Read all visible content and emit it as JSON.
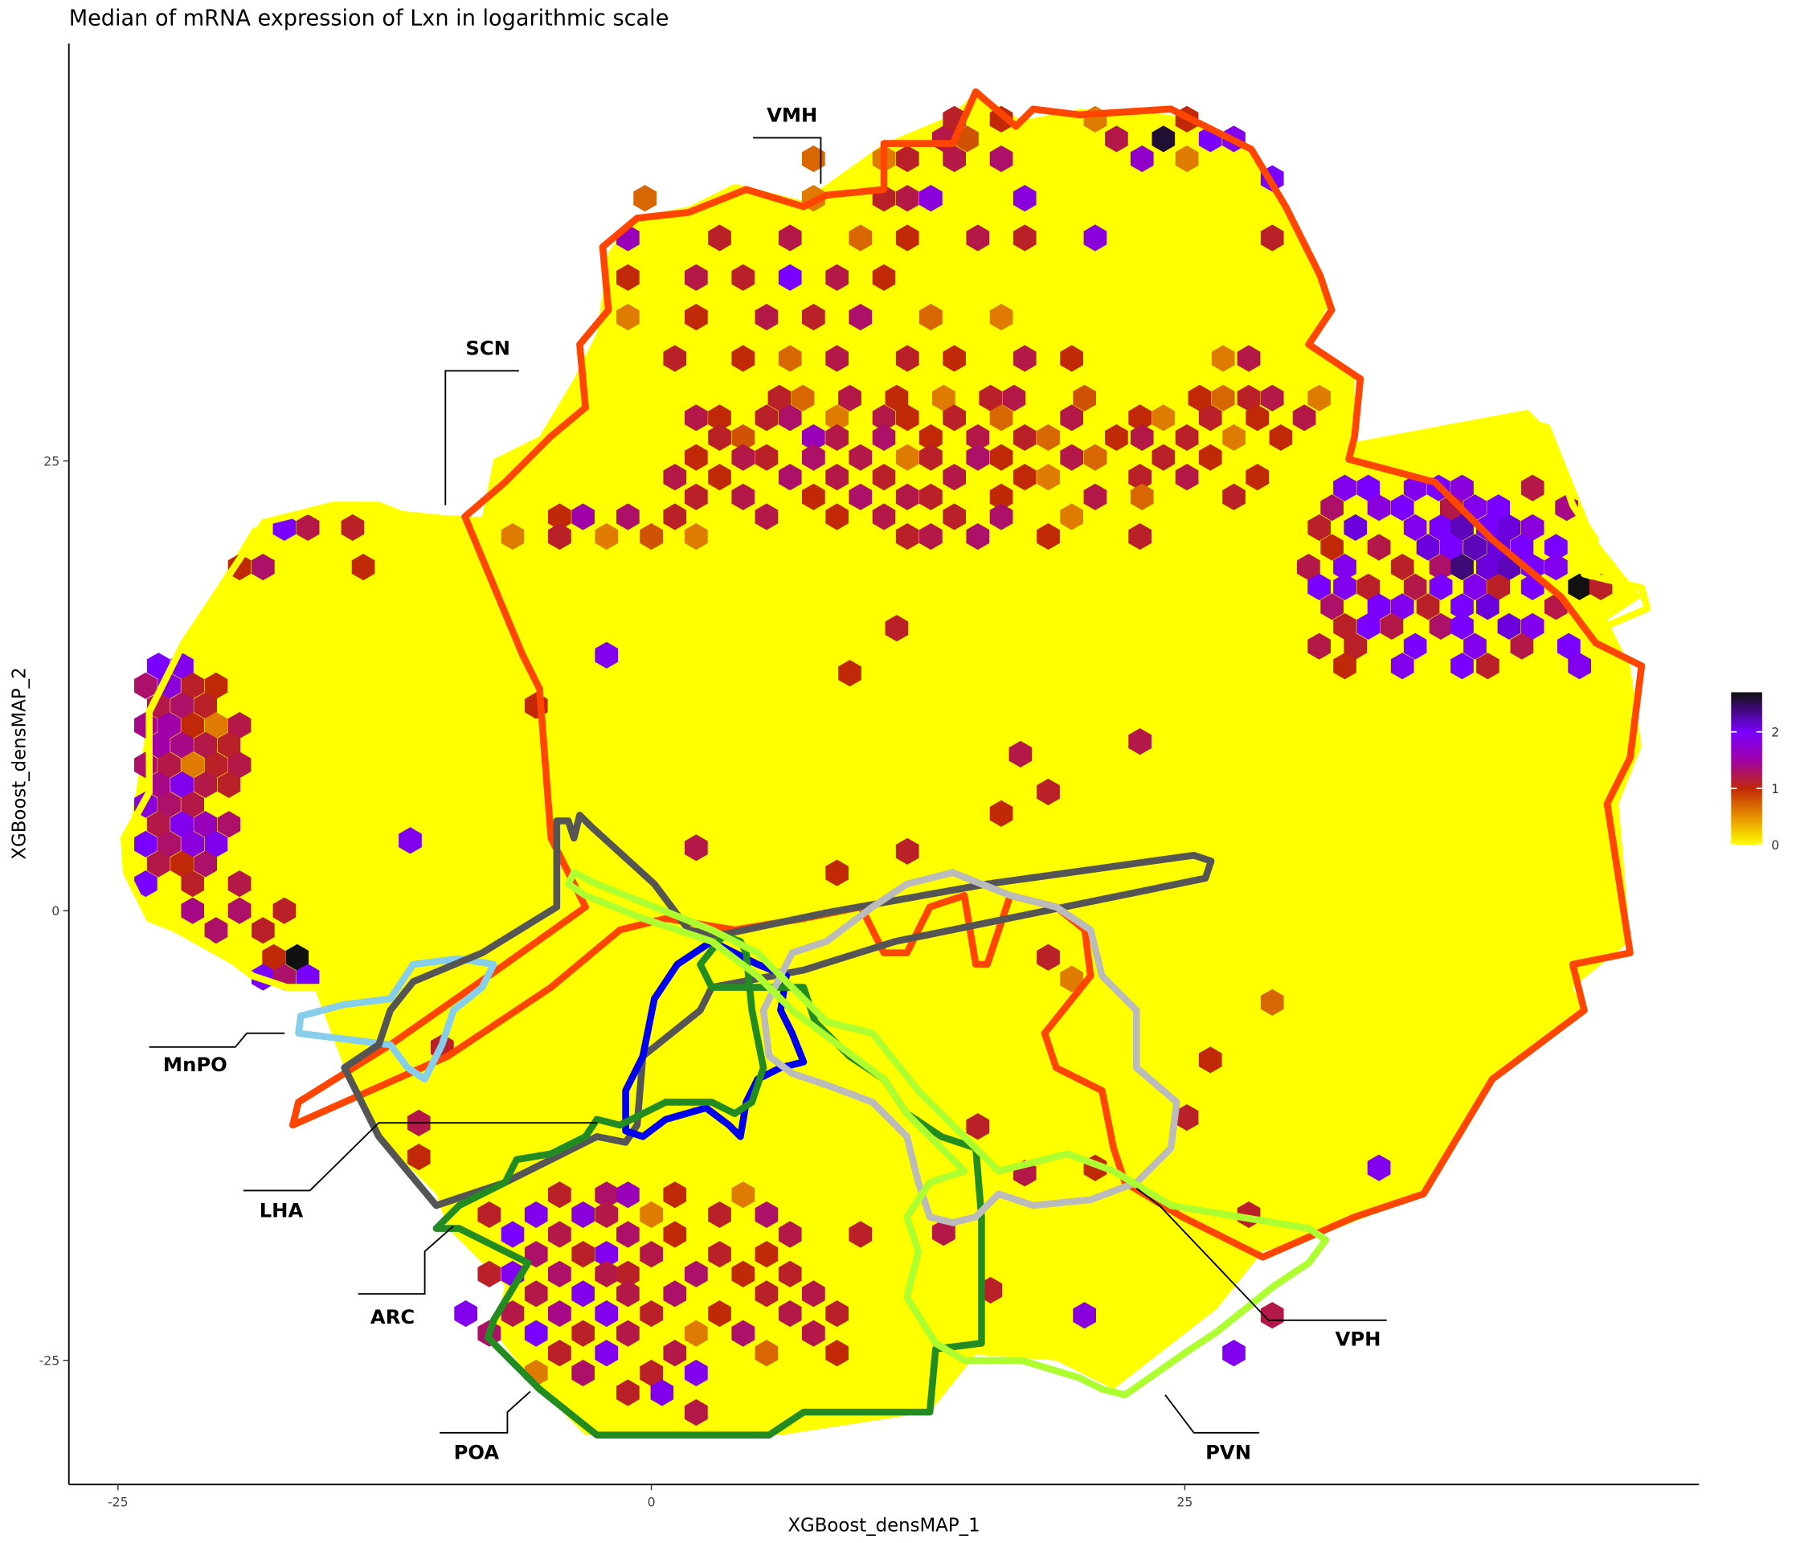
{
  "chart_data": {
    "type": "hexbin",
    "title": "Median of mRNA expression of Lxn in logarithmic scale",
    "x_label": "XGBoost_densMAP_1",
    "y_label": "XGBoost_densMAP_2",
    "xlim": [
      -27.3,
      49.1
    ],
    "ylim": [
      -31.9,
      48.2
    ],
    "xticks": [
      -25,
      0,
      25
    ],
    "yticks": [
      -25,
      0,
      25
    ],
    "x": [
      6,
      7.1,
      9.3,
      11.5,
      13.7,
      15.9,
      17,
      20.3,
      25.7,
      26.8,
      28,
      29.1,
      31.3,
      2.1,
      3.2,
      5.4,
      6.5,
      8.7,
      10.9,
      12,
      14.2,
      16.4,
      19.7,
      22.9,
      24,
      26.2,
      28.4,
      30.6,
      3.2,
      4.3,
      7.6,
      8.7,
      10.9,
      13.1,
      15.3,
      17.5,
      18.6,
      21.8,
      23,
      25.1,
      27.3,
      29.5,
      2.1,
      4.3,
      5.4,
      7.6,
      9.8,
      12,
      13.1,
      15.3,
      16.4,
      19.7,
      20.8,
      24,
      26.2,
      1.1,
      3.2,
      6.5,
      8.7,
      10.9,
      14.2,
      17.5,
      18.6,
      22.9,
      25.1,
      28.4,
      2.1,
      4.3,
      7.6,
      9.8,
      12,
      13.1,
      16.4,
      20.8,
      23,
      27.3,
      -4.3,
      -3.2,
      -1.1,
      1.1,
      5.4,
      8.7,
      10.9,
      14.2,
      16.4,
      19.7,
      -6.5,
      -4.3,
      -2.1,
      0,
      2.1,
      12,
      13.1,
      15.3,
      18.6,
      22.9,
      1.1,
      4.3,
      6.5,
      8.7,
      12,
      14.2,
      17.5,
      19.7,
      26.8,
      28,
      -1.1,
      2.1,
      5.4,
      7.6,
      9.8,
      13.1,
      16.4,
      -1.1,
      2.1,
      4.3,
      6.5,
      8.7,
      10.9,
      -1.1,
      3.2,
      6.5,
      9.8,
      12,
      15.3,
      17.5,
      20.8,
      29.1,
      -0.3,
      7.6,
      10.9,
      12,
      13.1,
      17.5,
      7.6,
      10.9,
      12,
      14.2,
      16.4,
      23,
      25.1,
      13.7,
      14.8,
      21.8,
      24,
      26.2,
      27.3,
      14.2,
      16.4,
      20.8,
      25.1,
      29.1,
      32.5,
      33.6,
      35.8,
      36.9,
      38,
      41.3,
      31.9,
      34.1,
      35.2,
      37.5,
      38.6,
      39.7,
      42.9,
      31.3,
      33,
      35.8,
      37,
      38,
      39.2,
      40.2,
      41.3,
      31.9,
      34.1,
      36.4,
      37.5,
      38.6,
      39.7,
      40.8,
      42.4,
      30.8,
      32.5,
      35.2,
      37,
      38,
      39.2,
      40.2,
      41.3,
      42.4,
      31.3,
      32.5,
      33.6,
      35.8,
      37,
      38.6,
      39.7,
      41.3,
      43.5,
      44.5,
      31.9,
      34.1,
      35.2,
      36.4,
      38,
      39.2,
      42.4,
      32.5,
      33.6,
      34.7,
      37,
      38,
      40.2,
      41.3,
      31.3,
      33,
      35.8,
      38.6,
      40.8,
      43,
      32.5,
      35.2,
      38,
      39.2,
      43.5,
      -23.1,
      -22,
      -23.7,
      -22.6,
      -21.5,
      -20.4,
      -23.1,
      -22,
      -20.9,
      -23.7,
      -22.6,
      -21.5,
      -20.4,
      -19.3,
      -23.1,
      -22,
      -20.9,
      -19.8,
      -23.7,
      -22.6,
      -21.5,
      -20.4,
      -19.3,
      -23.1,
      -22,
      -20.9,
      -19.8,
      -23.7,
      -22.6,
      -21.5,
      -23.1,
      -22,
      -20.9,
      -19.8,
      -23.7,
      -22.6,
      -21.5,
      -20.4,
      -23.1,
      -22,
      -20.9,
      -23.7,
      -21.5,
      -19.3,
      -21.5,
      -19.3,
      -17.2,
      -20.4,
      -18.2,
      -17.7,
      -16.6,
      -18.2,
      -17.2,
      -16.1,
      -17.2,
      -16.1,
      -14,
      -19.3,
      -18.2,
      -13.5,
      -4.3,
      -2.1,
      -1.1,
      1.1,
      4.3,
      -7.6,
      -5.4,
      -3.2,
      -2.1,
      0,
      3.2,
      5.4,
      -6.5,
      -4.3,
      -1.1,
      1.1,
      6.5,
      9.8,
      -5.4,
      -3.2,
      -2.1,
      0,
      3.2,
      5.4,
      -7.6,
      -6.5,
      -4.3,
      -2.1,
      -1.1,
      2.1,
      4.3,
      6.5,
      -5.4,
      -3.2,
      -1.1,
      1.1,
      5.4,
      7.6,
      -8.7,
      -6.5,
      -4.3,
      -2.1,
      0,
      3.2,
      6.5,
      8.7,
      -7.6,
      -5.4,
      -3.2,
      -1.1,
      2.1,
      4.3,
      7.6,
      -4.3,
      -2.1,
      1.1,
      5.4,
      8.7,
      -5.4,
      -3.2,
      0,
      2.1,
      -1.1,
      0.5,
      2.1,
      11.5,
      9.3,
      17.3,
      18.6,
      22.9,
      16.4,
      12,
      8.7,
      2.1,
      -11.3,
      -5.4,
      -2.1,
      18.6,
      19.7,
      29.1,
      34.1,
      28,
      20.8,
      15.3,
      17.5,
      26.2,
      25.1,
      -9.8,
      -10.9,
      -10.9,
      15.9,
      20.3,
      13.7,
      27.3,
      29.1
    ],
    "y": [
      28.5,
      28.5,
      28.5,
      28.5,
      28.5,
      28.5,
      28.5,
      28.5,
      28.5,
      28.5,
      28.5,
      28.5,
      28.5,
      27.4,
      27.4,
      27.4,
      27.4,
      27.4,
      27.4,
      27.4,
      27.4,
      27.4,
      27.4,
      27.4,
      27.4,
      27.4,
      27.4,
      27.4,
      26.3,
      26.3,
      26.3,
      26.3,
      26.3,
      26.3,
      26.3,
      26.3,
      26.3,
      26.3,
      26.3,
      26.3,
      26.3,
      26.3,
      25.2,
      25.2,
      25.2,
      25.2,
      25.2,
      25.2,
      25.2,
      25.2,
      25.2,
      25.2,
      25.2,
      25.2,
      25.2,
      24.1,
      24.1,
      24.1,
      24.1,
      24.1,
      24.1,
      24.1,
      24.1,
      24.1,
      24.1,
      24.1,
      23,
      23,
      23,
      23,
      23,
      23,
      23,
      23,
      23,
      23,
      21.9,
      21.9,
      21.9,
      21.9,
      21.9,
      21.9,
      21.9,
      21.9,
      21.9,
      21.9,
      20.8,
      20.8,
      20.8,
      20.8,
      20.8,
      20.8,
      20.8,
      20.8,
      20.8,
      20.8,
      30.7,
      30.7,
      30.7,
      30.7,
      30.7,
      30.7,
      30.7,
      30.7,
      30.7,
      30.7,
      33,
      33,
      33,
      33,
      33,
      33,
      33,
      35.2,
      35.2,
      35.2,
      35.2,
      35.2,
      35.2,
      37.4,
      37.4,
      37.4,
      37.4,
      37.4,
      37.4,
      37.4,
      37.4,
      37.4,
      39.6,
      39.6,
      39.6,
      39.6,
      39.6,
      39.6,
      41.8,
      41.8,
      41.8,
      41.8,
      41.8,
      41.8,
      41.8,
      42.9,
      42.9,
      42.9,
      42.9,
      42.9,
      42.9,
      44,
      44,
      44,
      44,
      40.7,
      23.5,
      23.5,
      23.5,
      23.5,
      23.5,
      23.5,
      22.4,
      22.4,
      22.4,
      22.4,
      22.4,
      22.4,
      22.4,
      21.3,
      21.3,
      21.3,
      21.3,
      21.3,
      21.3,
      21.3,
      21.3,
      20.2,
      20.2,
      20.2,
      20.2,
      20.2,
      20.2,
      20.2,
      20.2,
      19.1,
      19.1,
      19.1,
      19.1,
      19.1,
      19.1,
      19.1,
      19.1,
      19.1,
      18,
      18,
      18,
      18,
      18,
      18,
      18,
      18,
      18,
      18,
      16.9,
      16.9,
      16.9,
      16.9,
      16.9,
      16.9,
      16.9,
      15.8,
      15.8,
      15.8,
      15.8,
      15.8,
      15.8,
      15.8,
      14.7,
      14.7,
      14.7,
      14.7,
      14.7,
      14.7,
      13.6,
      13.6,
      13.6,
      13.6,
      13.6,
      13.6,
      13.6,
      12.5,
      12.5,
      12.5,
      12.5,
      11.4,
      11.4,
      11.4,
      10.3,
      10.3,
      10.3,
      10.3,
      10.3,
      9.2,
      9.2,
      9.2,
      9.2,
      8.1,
      8.1,
      8.1,
      8.1,
      8.1,
      7,
      7,
      7,
      7,
      5.9,
      5.9,
      5.9,
      4.8,
      4.8,
      4.8,
      4.8,
      3.7,
      3.7,
      3.7,
      3.7,
      2.6,
      2.6,
      2.6,
      1.5,
      1.5,
      1.5,
      0,
      0,
      0,
      -1.1,
      -1.1,
      -2.6,
      -2.6,
      -3.7,
      -3.7,
      -3.7,
      21.3,
      21.3,
      21.3,
      19.1,
      19.1,
      19.1,
      -15.8,
      -15.8,
      -15.8,
      -15.8,
      -15.8,
      -16.9,
      -16.9,
      -16.9,
      -16.9,
      -16.9,
      -16.9,
      -16.9,
      -18,
      -18,
      -18,
      -18,
      -18,
      -18,
      -19.1,
      -19.1,
      -19.1,
      -19.1,
      -19.1,
      -19.1,
      -20.2,
      -20.2,
      -20.2,
      -20.2,
      -20.2,
      -20.2,
      -20.2,
      -20.2,
      -21.3,
      -21.3,
      -21.3,
      -21.3,
      -21.3,
      -21.3,
      -22.4,
      -22.4,
      -22.4,
      -22.4,
      -22.4,
      -22.4,
      -22.4,
      -22.4,
      -23.5,
      -23.5,
      -23.5,
      -23.5,
      -23.5,
      -23.5,
      -23.5,
      -24.6,
      -24.6,
      -24.6,
      -24.6,
      -24.6,
      -25.7,
      -25.7,
      -25.7,
      -25.7,
      -26.8,
      -26.8,
      -27.9,
      15.7,
      13.2,
      8.7,
      6.6,
      9.4,
      5.4,
      3.3,
      2.1,
      3.5,
      3.9,
      11.4,
      14.2,
      -2.6,
      -3.8,
      -5.1,
      -14.3,
      -16.9,
      -14.3,
      -12,
      -14.6,
      -8.3,
      -11.5,
      -7.6,
      -11.8,
      -13.7,
      -21.1,
      -22.5,
      -17.9,
      -24.6,
      -22.5
    ],
    "values": [
      1.1,
      0.7,
      1.2,
      1.0,
      0.6,
      1.1,
      1.2,
      0.8,
      1.0,
      0.7,
      1.1,
      1.2,
      0.6,
      1.2,
      1.0,
      1.1,
      1.3,
      0.6,
      1.2,
      1.0,
      1.1,
      0.7,
      1.2,
      1.0,
      0.6,
      1.1,
      1.0,
      1.2,
      1.1,
      0.8,
      1.6,
      1.2,
      1.3,
      1.0,
      1.2,
      1.1,
      0.7,
      1.0,
      1.2,
      1.1,
      0.6,
      1.0,
      1.0,
      1.2,
      1.1,
      1.3,
      1.2,
      0.6,
      1.1,
      1.3,
      1.0,
      1.2,
      0.7,
      1.1,
      1.0,
      1.2,
      1.0,
      1.3,
      1.2,
      1.1,
      1.2,
      1.0,
      0.6,
      1.1,
      1.2,
      1.0,
      1.1,
      1.2,
      1.0,
      1.3,
      1.2,
      1.1,
      1.0,
      1.2,
      0.7,
      1.1,
      1.0,
      1.5,
      1.3,
      1.1,
      1.2,
      1.0,
      1.2,
      1.1,
      1.3,
      0.6,
      0.6,
      1.1,
      0.6,
      0.8,
      0.6,
      1.1,
      1.2,
      1.3,
      1.0,
      1.1,
      1.1,
      1.0,
      0.7,
      1.2,
      1.1,
      1.0,
      1.2,
      1.0,
      0.6,
      1.2,
      0.6,
      1.0,
      1.2,
      1.1,
      1.3,
      0.7,
      0.6,
      1.0,
      1.2,
      1.1,
      2.0,
      1.2,
      1.0,
      1.6,
      1.1,
      1.2,
      0.7,
      1.0,
      1.2,
      1.1,
      1.8,
      1.1,
      0.7,
      0.6,
      1.1,
      1.2,
      1.8,
      1.8,
      0.7,
      0.6,
      1.1,
      1.2,
      1.3,
      1.7,
      0.6,
      1.2,
      0.8,
      1.2,
      2.6,
      2.0,
      1.9,
      1.1,
      1.0,
      0.6,
      1.0,
      2.0,
      1.9,
      2.0,
      1.9,
      2.0,
      1.8,
      1.2,
      1.3,
      1.8,
      2.0,
      1.2,
      1.9,
      2.0,
      1.4,
      1.1,
      2.1,
      1.9,
      2.0,
      2.2,
      2.0,
      2.1,
      1.8,
      1.0,
      1.2,
      2.1,
      2.0,
      2.2,
      2.1,
      2.0,
      2.0,
      1.2,
      1.9,
      1.1,
      1.3,
      2.4,
      2.1,
      2.2,
      2.0,
      1.9,
      2.0,
      1.9,
      1.1,
      1.2,
      2.0,
      1.9,
      1.1,
      2.0,
      2.7,
      1.1,
      1.3,
      2.0,
      1.9,
      1.1,
      2.0,
      2.1,
      1.2,
      1.1,
      2.0,
      1.2,
      1.3,
      2.0,
      2.1,
      1.9,
      1.2,
      1.1,
      2.0,
      1.9,
      1.2,
      2.0,
      1.0,
      1.9,
      2.0,
      1.1,
      1.9,
      2.0,
      1.9,
      1.3,
      1.8,
      1.1,
      1.0,
      1.2,
      1.3,
      1.1,
      1.4,
      1.5,
      1.0,
      0.6,
      1.2,
      1.5,
      1.4,
      1.2,
      1.1,
      1.3,
      1.2,
      0.6,
      1.1,
      1.2,
      1.4,
      1.9,
      1.2,
      1.1,
      1.8,
      1.3,
      1.2,
      1.2,
      1.9,
      1.6,
      1.3,
      2.0,
      1.3,
      1.8,
      1.9,
      1.2,
      1.0,
      1.3,
      2.0,
      1.1,
      1.2,
      1.4,
      1.3,
      1.1,
      1.3,
      1.1,
      1.0,
      2.7,
      2.0,
      1.3,
      2.0,
      2.0,
      1.2,
      1.1,
      1.0,
      1.3,
      1.0,
      1.1,
      1.3,
      1.6,
      1.0,
      0.6,
      1.1,
      1.9,
      1.8,
      1.2,
      0.6,
      1.1,
      1.3,
      2.0,
      1.2,
      1.3,
      1.0,
      1.2,
      1.1,
      1.3,
      1.1,
      1.9,
      1.2,
      1.1,
      1.0,
      1.1,
      1.9,
      1.3,
      1.2,
      1.1,
      1.3,
      1.0,
      1.1,
      1.2,
      1.9,
      1.2,
      1.3,
      1.1,
      1.2,
      1.9,
      1.2,
      1.4,
      1.9,
      1.1,
      1.0,
      1.2,
      1.1,
      1.3,
      2.0,
      1.1,
      1.2,
      0.6,
      1.3,
      1.2,
      1.1,
      1.9,
      1.2,
      0.7,
      1.0,
      0.6,
      1.3,
      1.1,
      1.9,
      1.1,
      1.9,
      1.2,
      1.1,
      1.0,
      1.2,
      1.1,
      1.2,
      1.0,
      1.1,
      1.0,
      1.2,
      1.9,
      1.0,
      1.9,
      1.1,
      0.6,
      0.7,
      1.9,
      1.1,
      1.0,
      1.1,
      1.2,
      1.0,
      1.1,
      1.1,
      1.2,
      1.0,
      1.1,
      1.8,
      1.2,
      1.9,
      1.2
    ],
    "colorbar": {
      "lim": [
        0,
        2.7
      ],
      "ticks": [
        0,
        1,
        2
      ],
      "stops": [
        0,
        0.5,
        1,
        1.5,
        2,
        2.7
      ],
      "colors": [
        "#ffff00",
        "#e89000",
        "#c02808",
        "#a000a8",
        "#7a00ff",
        "#111111"
      ]
    },
    "annotations": [
      "VMH",
      "SCN",
      "MnPO",
      "LHA",
      "ARC",
      "POA",
      "PVN",
      "VPH"
    ]
  }
}
